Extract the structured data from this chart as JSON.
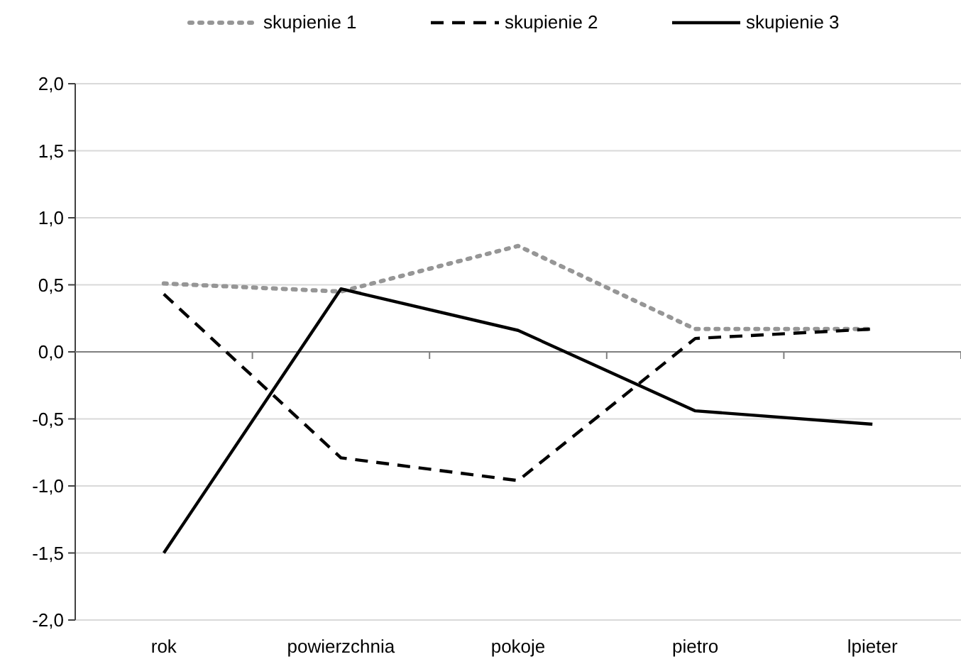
{
  "chart_data": {
    "type": "line",
    "categories": [
      "rok",
      "powierzchnia",
      "pokoje",
      "pietro",
      "lpieter"
    ],
    "series": [
      {
        "name": "skupienie 1",
        "color": "#969696",
        "line_style": "dotted",
        "values": [
          0.51,
          0.45,
          0.79,
          0.17,
          0.17
        ]
      },
      {
        "name": "skupienie 2",
        "color": "#000000",
        "line_style": "dashed",
        "values": [
          0.43,
          -0.79,
          -0.96,
          0.1,
          0.17
        ]
      },
      {
        "name": "skupienie 3",
        "color": "#000000",
        "line_style": "solid",
        "values": [
          -1.5,
          0.47,
          0.16,
          -0.44,
          -0.54
        ]
      }
    ],
    "ylim": [
      -2,
      2
    ],
    "yticks": [
      {
        "value": -2,
        "label": "-2,0"
      },
      {
        "value": -1.5,
        "label": "-1,5"
      },
      {
        "value": -1,
        "label": "-1,0"
      },
      {
        "value": -0.5,
        "label": "-0,5"
      },
      {
        "value": 0,
        "label": "0,0"
      },
      {
        "value": 0.5,
        "label": "0,5"
      },
      {
        "value": 1,
        "label": "1,0"
      },
      {
        "value": 1.5,
        "label": "1,5"
      },
      {
        "value": 2,
        "label": "2,0"
      }
    ],
    "grid": "y",
    "legend": "top",
    "marker": "none"
  }
}
